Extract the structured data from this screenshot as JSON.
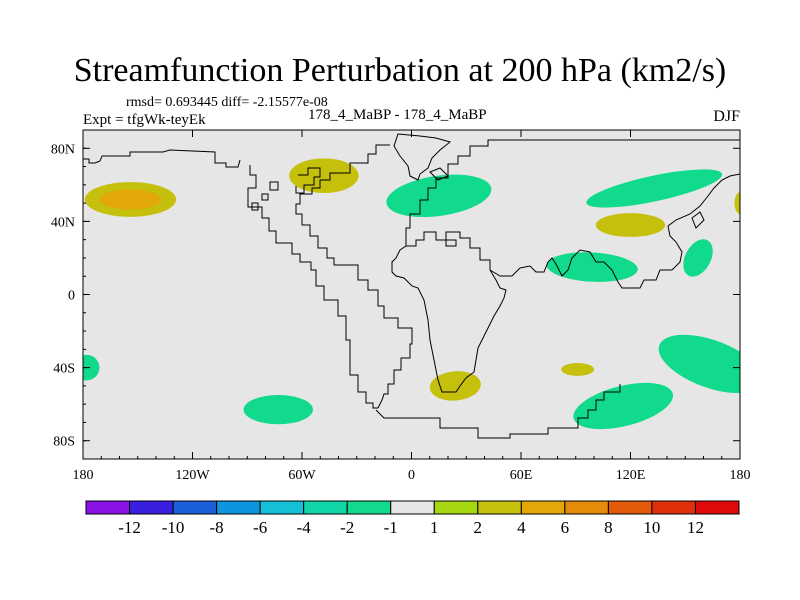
{
  "title": "Streamfunction Perturbation at 200 hPa (km2/s)",
  "stats": "rmsd= 0.693445 diff= -2.15577e-08",
  "expt": "Expt = tfgWk-teyEk",
  "cases": "178_4_MaBP - 178_4_MaBP",
  "season": "DJF",
  "chart_data": {
    "type": "heatmap",
    "projection": "cylindrical-equidistant",
    "lon_range": [
      -180,
      180
    ],
    "lat_range": [
      -90,
      90
    ],
    "x_ticks": [
      {
        "lon": -180,
        "label": "180"
      },
      {
        "lon": -120,
        "label": "120W"
      },
      {
        "lon": -60,
        "label": "60W"
      },
      {
        "lon": 0,
        "label": "0"
      },
      {
        "lon": 60,
        "label": "60E"
      },
      {
        "lon": 120,
        "label": "120E"
      },
      {
        "lon": 180,
        "label": "180"
      }
    ],
    "y_ticks": [
      {
        "lat": 80,
        "label": "80N"
      },
      {
        "lat": 40,
        "label": "40N"
      },
      {
        "lat": 0,
        "label": "0"
      },
      {
        "lat": -40,
        "label": "40S"
      },
      {
        "lat": -80,
        "label": "80S"
      }
    ],
    "colorbar": {
      "labels": [
        "-12",
        "-10",
        "-8",
        "-6",
        "-4",
        "-2",
        "-1",
        "1",
        "2",
        "4",
        "6",
        "8",
        "10",
        "12"
      ],
      "colors": [
        "#8a14e8",
        "#3a1fe0",
        "#1a5fd8",
        "#0d95e0",
        "#14c0d8",
        "#10d6a8",
        "#12da8c",
        "#e6e6e6",
        "#a6d812",
        "#c4c00c",
        "#e2a80a",
        "#e68a0a",
        "#e25a0a",
        "#e0300a",
        "#e00a0a"
      ]
    },
    "anomalies": [
      {
        "name": "north-pacific-positive",
        "lon": -154,
        "lat": 52,
        "rlon": 25,
        "rlat": 9.5,
        "rot": 0,
        "level": "2",
        "inner_level": "4",
        "inner_rlon": 17,
        "inner_rlat": 5.5
      },
      {
        "name": "north-america-positive",
        "lon": -48,
        "lat": 65,
        "rlon": 19,
        "rlat": 9.5,
        "rot": 0,
        "level": "2"
      },
      {
        "name": "east-atlantic-positive",
        "lon": 180,
        "lat": 50,
        "rlon": 3,
        "rlat": 6,
        "rot": 0,
        "level": "2"
      },
      {
        "name": "asia-positive",
        "lon": 120,
        "lat": 38,
        "rlon": 19,
        "rlat": 6.5,
        "rot": 0,
        "level": "2"
      },
      {
        "name": "south-atlantic-positive",
        "lon": 24,
        "lat": -50,
        "rlon": 14,
        "rlat": 8,
        "rot": -5,
        "level": "2"
      },
      {
        "name": "indian-ocean-positive",
        "lon": 91,
        "lat": -41,
        "rlon": 9,
        "rlat": 3.5,
        "rot": 0,
        "level": "2"
      },
      {
        "name": "europe-negative",
        "lon": 15,
        "lat": 54,
        "rlon": 29,
        "rlat": 11,
        "rot": -8,
        "level": "-1"
      },
      {
        "name": "north-pacific-west-negative",
        "lon": 133,
        "lat": 58,
        "rlon": 38,
        "rlat": 7,
        "rot": -12,
        "level": "-1"
      },
      {
        "name": "east-asia-negative",
        "lon": 99,
        "lat": 15,
        "rlon": 25,
        "rlat": 8,
        "rot": 3,
        "level": "-1"
      },
      {
        "name": "west-pacific-negative",
        "lon": 157,
        "lat": 20,
        "rlon": 7,
        "rlat": 11,
        "rot": 28,
        "level": "-1"
      },
      {
        "name": "south-pacific-east-negative",
        "lon": -178,
        "lat": -40,
        "rlon": 7,
        "rlat": 7,
        "rot": 0,
        "level": "-1"
      },
      {
        "name": "south-america-negative",
        "lon": -73,
        "lat": -63,
        "rlon": 19,
        "rlat": 8,
        "rot": 0,
        "level": "-1"
      },
      {
        "name": "australia-south-negative",
        "lon": 116,
        "lat": -61,
        "rlon": 28,
        "rlat": 11,
        "rot": -14,
        "level": "-1"
      },
      {
        "name": "south-pacific-negative",
        "lon": 164,
        "lat": -38,
        "rlon": 30,
        "rlat": 13,
        "rot": 20,
        "level": "-1"
      }
    ]
  }
}
